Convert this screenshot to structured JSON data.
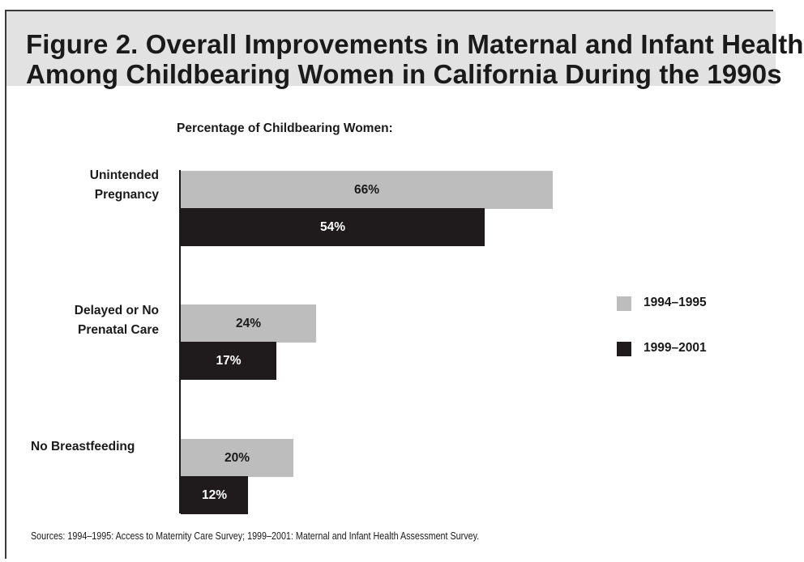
{
  "figure": {
    "title_line1": "Figure 2. Overall Improvements in Maternal and Infant Health",
    "title_line2": "Among Childbearing Women in California During the 1990s",
    "source": "Sources: 1994–1995: Access to Maternity Care Survey; 1999–2001: Maternal and Infant Health Assessment Survey."
  },
  "chart_data": {
    "type": "bar",
    "orientation": "horizontal",
    "subtitle": "Percentage of Childbearing Women:",
    "categories": [
      "Unintended Pregnancy",
      "Delayed or No Prenatal Care",
      "No Breastfeeding"
    ],
    "category_lines": [
      [
        "Unintended",
        "Pregnancy"
      ],
      [
        "Delayed or No",
        "Prenatal Care"
      ],
      [
        "No Breastfeeding"
      ]
    ],
    "series": [
      {
        "name": "1994–1995",
        "color": "#bdbdbd",
        "label_color": "#1a1a1a",
        "values": [
          66,
          24,
          20
        ],
        "labels": [
          "66%",
          "24%",
          "20%"
        ]
      },
      {
        "name": "1999–2001",
        "color": "#1f1a1b",
        "label_color": "#ffffff",
        "values": [
          54,
          17,
          12
        ],
        "labels": [
          "54%",
          "17%",
          "12%"
        ]
      }
    ],
    "unit": "%",
    "legend_position": "right",
    "grid": false
  }
}
